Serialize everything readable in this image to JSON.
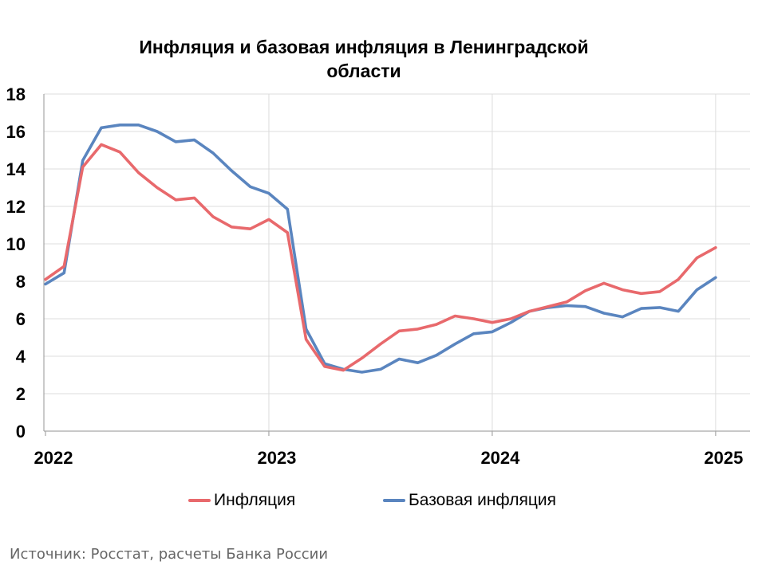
{
  "chart_data": {
    "type": "line",
    "title_line1": "Инфляция и базовая инфляция в Ленинградской",
    "title_line2": "области",
    "xlabel": "",
    "ylabel": "",
    "ylim": [
      0,
      18
    ],
    "yticks": [
      0,
      2,
      4,
      6,
      8,
      10,
      12,
      14,
      16,
      18
    ],
    "x_tick_labels": [
      "2022",
      "2023",
      "2024",
      "2025"
    ],
    "x_tick_dates": [
      "2022-01",
      "2023-01",
      "2024-01",
      "2025-01"
    ],
    "x": [
      "2022-01",
      "2022-02",
      "2022-03",
      "2022-04",
      "2022-05",
      "2022-06",
      "2022-07",
      "2022-08",
      "2022-09",
      "2022-10",
      "2022-11",
      "2022-12",
      "2023-01",
      "2023-02",
      "2023-03",
      "2023-04",
      "2023-05",
      "2023-06",
      "2023-07",
      "2023-08",
      "2023-09",
      "2023-10",
      "2023-11",
      "2023-12",
      "2024-01",
      "2024-02",
      "2024-03",
      "2024-04",
      "2024-05",
      "2024-06",
      "2024-07",
      "2024-08",
      "2024-09",
      "2024-10",
      "2024-11",
      "2024-12",
      "2025-01"
    ],
    "grid": true,
    "legend_position": "bottom",
    "series": [
      {
        "name": "Инфляция",
        "color": "#e8696c",
        "values": [
          8.1,
          8.8,
          14.1,
          15.3,
          14.9,
          13.8,
          13.0,
          12.35,
          12.45,
          11.45,
          10.9,
          10.8,
          11.3,
          10.6,
          4.9,
          3.45,
          3.25,
          3.9,
          4.65,
          5.35,
          5.45,
          5.7,
          6.15,
          6.0,
          5.8,
          6.0,
          6.4,
          6.65,
          6.9,
          7.5,
          7.9,
          7.55,
          7.35,
          7.45,
          8.1,
          9.25,
          9.8
        ]
      },
      {
        "name": "Базовая инфляция",
        "color": "#5a85bf",
        "values": [
          7.85,
          8.45,
          14.45,
          16.2,
          16.35,
          16.35,
          16.0,
          15.45,
          15.55,
          14.85,
          13.9,
          13.05,
          12.7,
          11.85,
          5.45,
          3.6,
          3.3,
          3.15,
          3.3,
          3.85,
          3.65,
          4.05,
          4.65,
          5.2,
          5.3,
          5.8,
          6.4,
          6.6,
          6.7,
          6.65,
          6.3,
          6.1,
          6.55,
          6.6,
          6.4,
          7.55,
          8.2
        ]
      }
    ]
  },
  "legend": {
    "items": [
      {
        "label": "Инфляция",
        "color": "#e8696c"
      },
      {
        "label": "Базовая инфляция",
        "color": "#5a85bf"
      }
    ]
  },
  "source_note": "Источник: Росстат, расчеты Банка России"
}
